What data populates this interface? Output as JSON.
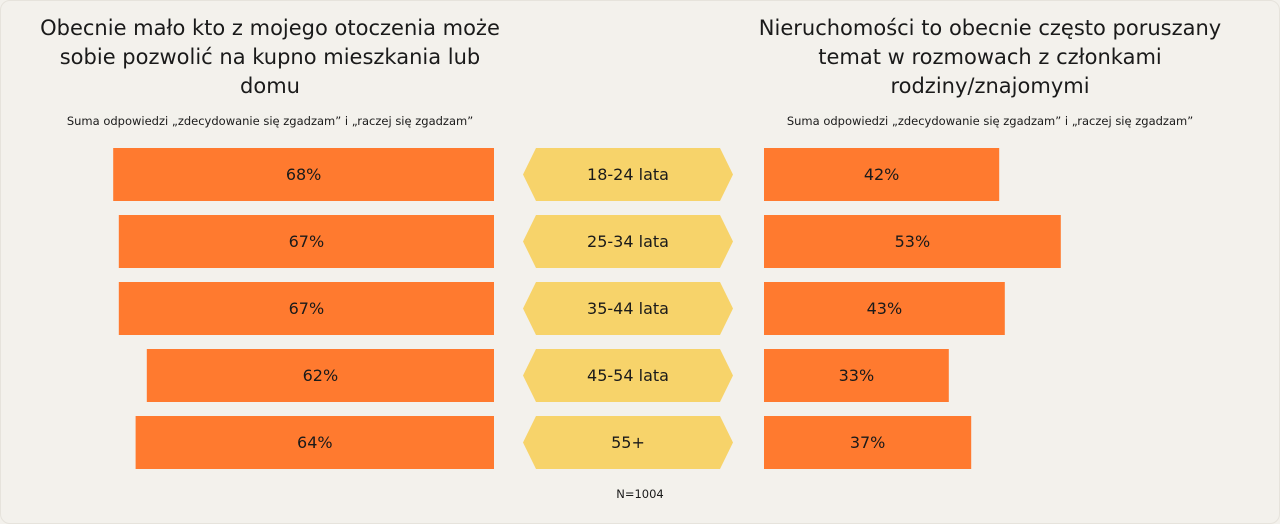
{
  "left_panel": {
    "title": "Obecnie mało kto z mojego otoczenia może sobie pozwolić na kupno mieszkania lub domu",
    "subtitle": "Suma odpowiedzi „zdecydowanie się zgadzam” i „raczej się zgadzam”"
  },
  "right_panel": {
    "title": "Nieruchomości to obecnie często poruszany temat w rozmowach z członkami rodziny/znajomymi",
    "subtitle": "Suma odpowiedzi „zdecydowanie się zgadzam” i „raczej się zgadzam”"
  },
  "note": "N=1004",
  "colors": {
    "bar": "#ff7a2f",
    "label_shape": "#f7d36a",
    "background": "#f3f1ec"
  },
  "chart_data": {
    "type": "bar",
    "categories": [
      "18-24 lata",
      "25-34 lata",
      "35-44 lata",
      "45-54 lata",
      "55+"
    ],
    "series": [
      {
        "values": [
          68,
          67,
          67,
          62,
          64
        ],
        "labels": [
          "68%",
          "67%",
          "67%",
          "62%",
          "64%"
        ]
      },
      {
        "values": [
          42,
          53,
          43,
          33,
          37
        ],
        "labels": [
          "42%",
          "53%",
          "43%",
          "33%",
          "37%"
        ]
      }
    ],
    "unit": "%"
  }
}
